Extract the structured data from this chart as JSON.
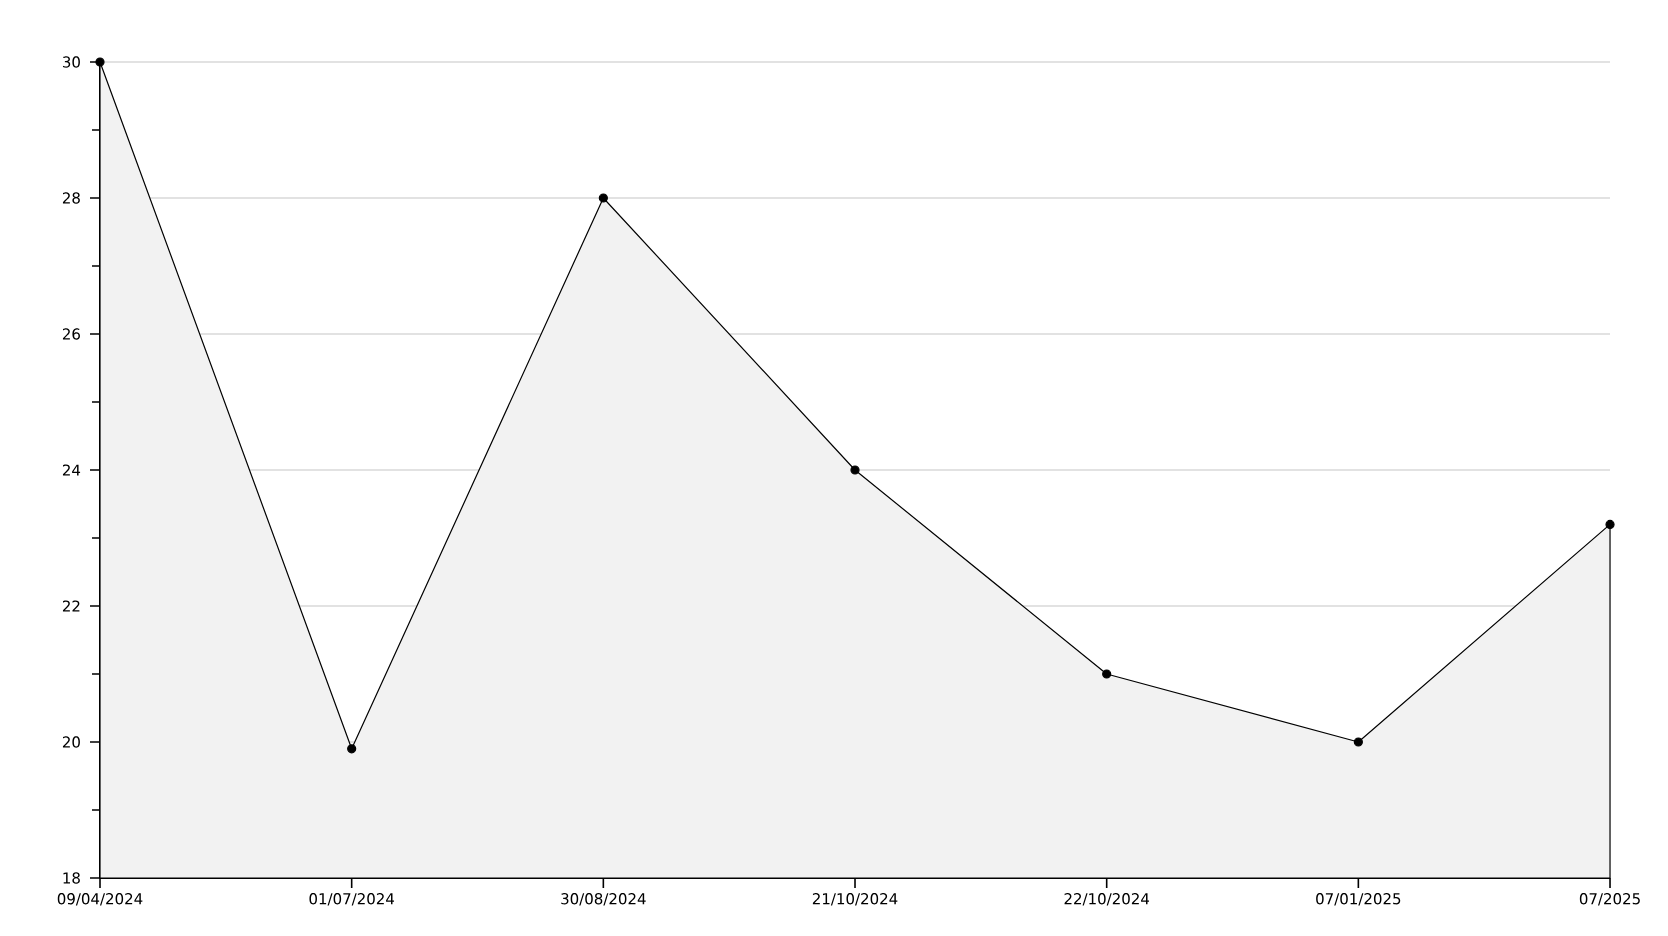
{
  "chart_data": {
    "type": "area",
    "categories": [
      "09/04/2024",
      "01/07/2024",
      "30/08/2024",
      "21/10/2024",
      "22/10/2024",
      "07/01/2025",
      "07/2025"
    ],
    "values": [
      30,
      19.9,
      28,
      24,
      21,
      20,
      23.2
    ],
    "color": "#f2f2f2",
    "ylim": [
      18,
      30
    ],
    "yticks": [
      18,
      {
        "value": 19,
        "label": null
      },
      20,
      {
        "value": 21,
        "label": null
      },
      22,
      {
        "value": 23,
        "label": null
      },
      24,
      {
        "value": 25,
        "label": null
      },
      26,
      {
        "value": 27,
        "label": null
      },
      28,
      {
        "value": 29,
        "label": null
      },
      30
    ],
    "grid": "y",
    "marker": "circle",
    "line_style": "solid"
  }
}
